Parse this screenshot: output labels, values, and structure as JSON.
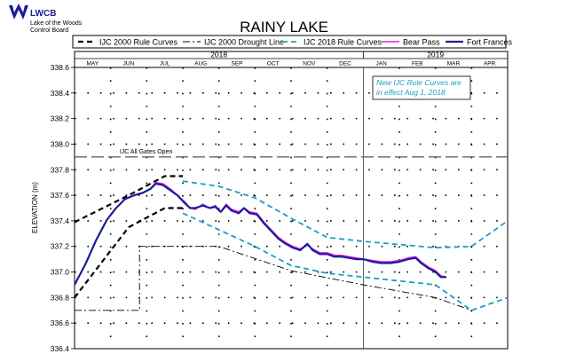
{
  "logo": {
    "acronym": "LWCB",
    "line1": "Lake of the Woods",
    "line2": "Control Board"
  },
  "chart_data": {
    "type": "line",
    "title": "RAINY LAKE",
    "ylabel": "ELEVATION (m)",
    "xlabel": "",
    "ylim": [
      336.4,
      338.6
    ],
    "yticks": [
      "338.6",
      "338.4",
      "338.2",
      "338.0",
      "337.8",
      "337.6",
      "337.4",
      "337.2",
      "337.0",
      "336.8",
      "336.6",
      "336.4"
    ],
    "grid": true,
    "legend_position": "top",
    "years": [
      {
        "label": "2018",
        "start": 0,
        "end": 8
      },
      {
        "label": "2019",
        "start": 8,
        "end": 12
      }
    ],
    "months": [
      "MAY",
      "JUN",
      "JUL",
      "AUG",
      "SEP",
      "OCT",
      "NOV",
      "DEC",
      "JAN",
      "FEB",
      "MAR",
      "APR"
    ],
    "x_units": "months since May 1, 2018",
    "gates_open_label": "IJC All Gates Open",
    "gates_open_level": 337.9,
    "note": [
      "New IJC Rule Curves are",
      "in effect Aug 1, 2018"
    ],
    "colors": {
      "ijc2000": "#000000",
      "drought": "#000000",
      "ijc2018": "#1aa0bf",
      "bear_pass": "#e020e0",
      "fort_frances": "#1c1c9c",
      "grid": "#000000",
      "note_text": "#1aa0bf"
    },
    "series": [
      {
        "name": "IJC 2000 Rule Curves",
        "style": "dashed-heavy",
        "color": "#000000",
        "segments": [
          [
            [
              0,
              337.39
            ],
            [
              1.5,
              337.6
            ],
            [
              2.5,
              337.75
            ],
            [
              3.0,
              337.75
            ]
          ],
          [
            [
              0,
              336.8
            ],
            [
              1.5,
              337.35
            ],
            [
              2.5,
              337.5
            ],
            [
              3.0,
              337.5
            ]
          ]
        ]
      },
      {
        "name": "IJC 2000 Drought Line",
        "style": "dashdot",
        "color": "#000000",
        "segments": [
          [
            [
              0,
              336.7
            ],
            [
              1.8,
              336.7
            ],
            [
              1.8,
              337.2
            ],
            [
              4.0,
              337.2
            ],
            [
              6.0,
              337.01
            ],
            [
              8.0,
              336.9
            ],
            [
              10.0,
              336.8
            ],
            [
              11.0,
              336.7
            ]
          ]
        ]
      },
      {
        "name": "IJC 2018 Rule Curves",
        "style": "dashed",
        "color": "#1aa0bf",
        "segments": [
          [
            [
              3.0,
              337.71
            ],
            [
              4.0,
              337.67
            ],
            [
              5.0,
              337.58
            ],
            [
              6.0,
              337.42
            ],
            [
              7.0,
              337.27
            ],
            [
              8.0,
              337.24
            ],
            [
              10.0,
              337.19
            ],
            [
              11.0,
              337.2
            ],
            [
              12.0,
              337.4
            ]
          ],
          [
            [
              3.0,
              337.46
            ],
            [
              4.0,
              337.33
            ],
            [
              5.0,
              337.2
            ],
            [
              6.0,
              337.05
            ],
            [
              7.0,
              336.99
            ],
            [
              8.0,
              336.96
            ],
            [
              10.0,
              336.9
            ],
            [
              11.0,
              336.7
            ],
            [
              12.0,
              336.8
            ]
          ]
        ]
      },
      {
        "name": "Bear Pass",
        "style": "solid",
        "color": "#e020e0",
        "points": [
          [
            0,
            336.9
          ],
          [
            0.3,
            337.06
          ],
          [
            0.6,
            337.25
          ],
          [
            0.9,
            337.41
          ],
          [
            1.15,
            337.5
          ],
          [
            1.4,
            337.57
          ],
          [
            1.65,
            337.6
          ],
          [
            1.9,
            337.62
          ],
          [
            2.1,
            337.65
          ],
          [
            2.25,
            337.7
          ],
          [
            2.45,
            337.69
          ],
          [
            2.65,
            337.65
          ],
          [
            2.85,
            337.6
          ],
          [
            3.05,
            337.55
          ],
          [
            3.2,
            337.5
          ],
          [
            3.35,
            337.49
          ],
          [
            3.55,
            337.53
          ],
          [
            3.75,
            337.5
          ],
          [
            3.9,
            337.52
          ],
          [
            4.05,
            337.47
          ],
          [
            4.2,
            337.53
          ],
          [
            4.35,
            337.49
          ],
          [
            4.55,
            337.47
          ],
          [
            4.7,
            337.5
          ],
          [
            4.85,
            337.47
          ],
          [
            5.05,
            337.46
          ],
          [
            5.25,
            337.39
          ],
          [
            5.45,
            337.33
          ],
          [
            5.65,
            337.27
          ],
          [
            5.85,
            337.23
          ],
          [
            6.05,
            337.2
          ],
          [
            6.25,
            337.18
          ],
          [
            6.45,
            337.21
          ],
          [
            6.6,
            337.18
          ],
          [
            6.8,
            337.15
          ],
          [
            7.0,
            337.15
          ],
          [
            7.2,
            337.13
          ],
          [
            7.4,
            337.13
          ],
          [
            7.6,
            337.12
          ],
          [
            7.8,
            337.11
          ],
          [
            8.0,
            337.1
          ],
          [
            8.25,
            337.09
          ],
          [
            8.5,
            337.08
          ],
          [
            8.75,
            337.08
          ],
          [
            9.0,
            337.09
          ],
          [
            9.25,
            337.11
          ],
          [
            9.45,
            337.12
          ],
          [
            9.6,
            337.08
          ],
          [
            9.8,
            337.04
          ],
          [
            10.0,
            337.01
          ],
          [
            10.15,
            336.97
          ],
          [
            10.3,
            336.96
          ]
        ]
      },
      {
        "name": "Fort Frances",
        "style": "solid-heavy",
        "color": "#1c1c9c",
        "points": [
          [
            0,
            336.9
          ],
          [
            0.3,
            337.06
          ],
          [
            0.6,
            337.25
          ],
          [
            0.9,
            337.41
          ],
          [
            1.15,
            337.5
          ],
          [
            1.4,
            337.57
          ],
          [
            1.65,
            337.6
          ],
          [
            1.9,
            337.62
          ],
          [
            2.1,
            337.65
          ],
          [
            2.25,
            337.69
          ],
          [
            2.45,
            337.68
          ],
          [
            2.65,
            337.64
          ],
          [
            2.85,
            337.6
          ],
          [
            3.05,
            337.54
          ],
          [
            3.2,
            337.5
          ],
          [
            3.35,
            337.5
          ],
          [
            3.55,
            337.52
          ],
          [
            3.75,
            337.5
          ],
          [
            3.9,
            337.51
          ],
          [
            4.05,
            337.47
          ],
          [
            4.2,
            337.52
          ],
          [
            4.35,
            337.48
          ],
          [
            4.55,
            337.46
          ],
          [
            4.7,
            337.5
          ],
          [
            4.85,
            337.46
          ],
          [
            5.05,
            337.45
          ],
          [
            5.25,
            337.38
          ],
          [
            5.45,
            337.32
          ],
          [
            5.65,
            337.26
          ],
          [
            5.85,
            337.22
          ],
          [
            6.05,
            337.19
          ],
          [
            6.25,
            337.17
          ],
          [
            6.45,
            337.22
          ],
          [
            6.6,
            337.17
          ],
          [
            6.8,
            337.14
          ],
          [
            7.0,
            337.14
          ],
          [
            7.2,
            337.12
          ],
          [
            7.4,
            337.12
          ],
          [
            7.6,
            337.11
          ],
          [
            7.8,
            337.1
          ],
          [
            8.0,
            337.1
          ],
          [
            8.25,
            337.08
          ],
          [
            8.5,
            337.07
          ],
          [
            8.75,
            337.07
          ],
          [
            9.0,
            337.08
          ],
          [
            9.25,
            337.1
          ],
          [
            9.45,
            337.11
          ],
          [
            9.6,
            337.07
          ],
          [
            9.8,
            337.03
          ],
          [
            10.0,
            337.0
          ],
          [
            10.15,
            336.96
          ],
          [
            10.3,
            336.96
          ]
        ]
      }
    ]
  }
}
